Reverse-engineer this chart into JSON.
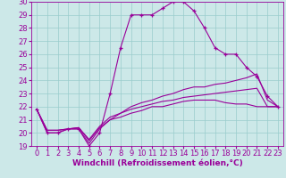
{
  "xlabel": "Windchill (Refroidissement éolien,°C)",
  "xlim": [
    -0.5,
    23.5
  ],
  "ylim": [
    19,
    30
  ],
  "yticks": [
    19,
    20,
    21,
    22,
    23,
    24,
    25,
    26,
    27,
    28,
    29,
    30
  ],
  "xticks": [
    0,
    1,
    2,
    3,
    4,
    5,
    6,
    7,
    8,
    9,
    10,
    11,
    12,
    13,
    14,
    15,
    16,
    17,
    18,
    19,
    20,
    21,
    22,
    23
  ],
  "line_color": "#990099",
  "bg_color": "#cce8e8",
  "grid_color": "#99cccc",
  "lines": [
    {
      "x": [
        0,
        1,
        2,
        3,
        4,
        5,
        6,
        7,
        8,
        9,
        10,
        11,
        12,
        13,
        14,
        15,
        16,
        17,
        18,
        19,
        20,
        21,
        22,
        23
      ],
      "y": [
        21.8,
        20.0,
        20.0,
        20.3,
        20.3,
        19.0,
        20.0,
        23.0,
        26.5,
        29.0,
        29.0,
        29.0,
        29.5,
        30.0,
        30.0,
        29.3,
        28.0,
        26.5,
        26.0,
        26.0,
        25.0,
        24.3,
        22.8,
        22.0
      ],
      "marker": "+"
    },
    {
      "x": [
        0,
        1,
        2,
        3,
        4,
        5,
        6,
        7,
        8,
        9,
        10,
        11,
        12,
        13,
        14,
        15,
        16,
        17,
        18,
        19,
        20,
        21,
        22,
        23
      ],
      "y": [
        21.8,
        20.0,
        20.0,
        20.3,
        20.3,
        19.2,
        20.3,
        21.0,
        21.5,
        22.0,
        22.3,
        22.5,
        22.8,
        23.0,
        23.3,
        23.5,
        23.5,
        23.7,
        23.8,
        24.0,
        24.2,
        24.5,
        22.5,
        22.0
      ],
      "marker": null
    },
    {
      "x": [
        0,
        1,
        2,
        3,
        4,
        5,
        6,
        7,
        8,
        9,
        10,
        11,
        12,
        13,
        14,
        15,
        16,
        17,
        18,
        19,
        20,
        21,
        22,
        23
      ],
      "y": [
        21.8,
        20.2,
        20.2,
        20.3,
        20.4,
        19.5,
        20.5,
        21.2,
        21.5,
        21.8,
        22.0,
        22.2,
        22.4,
        22.5,
        22.7,
        22.8,
        22.9,
        23.0,
        23.1,
        23.2,
        23.3,
        23.4,
        22.0,
        22.0
      ],
      "marker": null
    },
    {
      "x": [
        0,
        1,
        2,
        3,
        4,
        5,
        6,
        7,
        8,
        9,
        10,
        11,
        12,
        13,
        14,
        15,
        16,
        17,
        18,
        19,
        20,
        21,
        22,
        23
      ],
      "y": [
        21.8,
        20.2,
        20.2,
        20.3,
        20.4,
        19.4,
        20.4,
        21.0,
        21.2,
        21.5,
        21.7,
        22.0,
        22.0,
        22.2,
        22.4,
        22.5,
        22.5,
        22.5,
        22.3,
        22.2,
        22.2,
        22.0,
        22.0,
        22.0
      ],
      "marker": null
    }
  ],
  "label_fontsize": 6.5,
  "tick_fontsize": 6.0
}
